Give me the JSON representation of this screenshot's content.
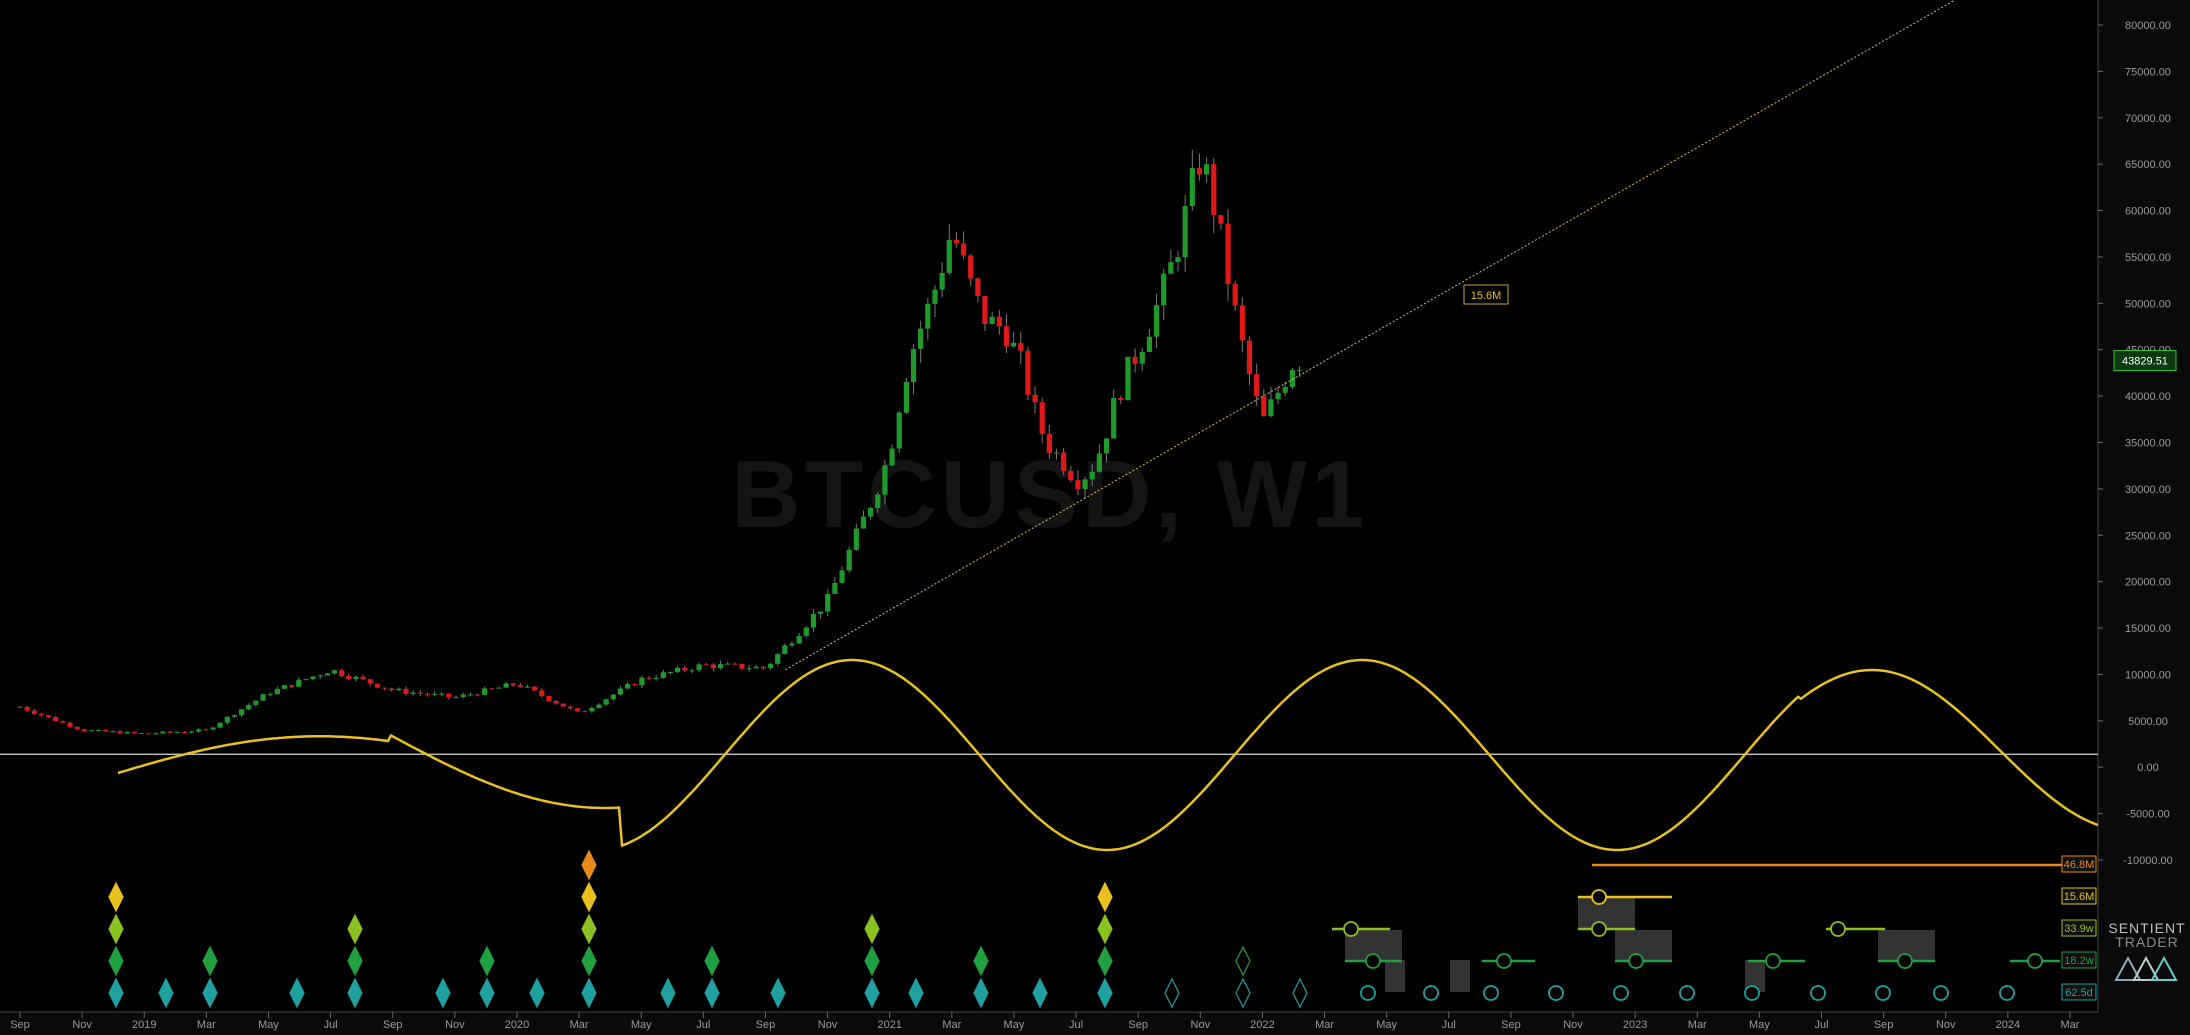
{
  "chart_data": {
    "type": "candlestick",
    "symbol_watermark": "BTCUSD, W1",
    "last_price_label": "43829.51",
    "trendline_label": "15.6M",
    "y_ticks": [
      "80000.00",
      "75000.00",
      "70000.00",
      "65000.00",
      "60000.00",
      "55000.00",
      "50000.00",
      "45000.00",
      "40000.00",
      "35000.00",
      "30000.00",
      "25000.00",
      "20000.00",
      "15000.00",
      "10000.00",
      "5000.00",
      "0.00",
      "-5000.00",
      "-10000.00"
    ],
    "ylim": [
      -10000,
      80000
    ],
    "x_ticks": [
      "Sep",
      "Nov",
      "2019",
      "Mar",
      "May",
      "Jul",
      "Sep",
      "Nov",
      "2020",
      "Mar",
      "May",
      "Jul",
      "Sep",
      "Nov",
      "2021",
      "Mar",
      "May",
      "Jul",
      "Sep",
      "Nov",
      "2022",
      "Mar",
      "May",
      "Jul",
      "Sep",
      "Nov",
      "2023",
      "Mar",
      "May",
      "Jul",
      "Sep",
      "Nov",
      "2024",
      "Mar"
    ],
    "price_weekly_close_approx": [
      {
        "date": "2018-09",
        "close": 6500
      },
      {
        "date": "2018-11",
        "close": 4000
      },
      {
        "date": "2019-01",
        "close": 3600
      },
      {
        "date": "2019-03",
        "close": 4000
      },
      {
        "date": "2019-05",
        "close": 8000
      },
      {
        "date": "2019-07",
        "close": 10500
      },
      {
        "date": "2019-09",
        "close": 8300
      },
      {
        "date": "2019-11",
        "close": 7500
      },
      {
        "date": "2020-01",
        "close": 9000
      },
      {
        "date": "2020-03",
        "close": 5800
      },
      {
        "date": "2020-05",
        "close": 9500
      },
      {
        "date": "2020-07",
        "close": 11000
      },
      {
        "date": "2020-09",
        "close": 10700
      },
      {
        "date": "2020-11",
        "close": 18000
      },
      {
        "date": "2021-01",
        "close": 33000
      },
      {
        "date": "2021-03",
        "close": 58000
      },
      {
        "date": "2021-05",
        "close": 37000
      },
      {
        "date": "2021-07",
        "close": 32000
      },
      {
        "date": "2021-09",
        "close": 45000
      },
      {
        "date": "2021-11",
        "close": 60000
      },
      {
        "date": "2022-01",
        "close": 37000
      },
      {
        "date": "2022-02",
        "close": 43829.51
      }
    ],
    "cycle_labels": [
      {
        "label": "46.8M",
        "color": "#e88a1a"
      },
      {
        "label": "15.6M",
        "color": "#e8c020"
      },
      {
        "label": "33.9w",
        "color": "#8ac020"
      },
      {
        "label": "18.2w",
        "color": "#20a040"
      },
      {
        "label": "62.5d",
        "color": "#20a0a0"
      }
    ],
    "composite_line_color": "#e8c020",
    "up_color": "#1f9a2a",
    "down_color": "#e01818"
  },
  "brand": {
    "line1": "SENTIENT",
    "line2": "TRADER"
  }
}
